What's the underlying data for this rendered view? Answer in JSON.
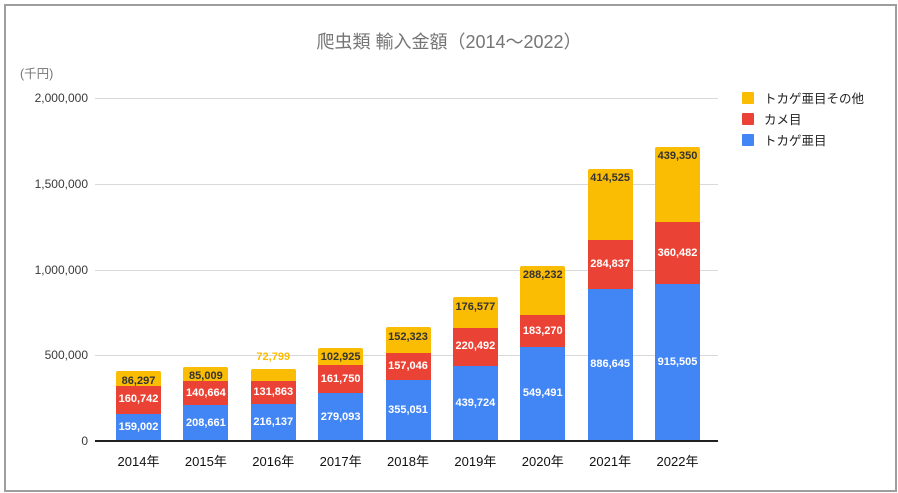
{
  "chart": {
    "title": "爬虫類 輸入金額（2014～2022）",
    "unit_label": "(千円)"
  },
  "chart_data": {
    "type": "bar",
    "stacked": true,
    "title": "爬虫類 輸入金額（2014～2022）",
    "xlabel": "",
    "ylabel": "(千円)",
    "ylim": [
      0,
      2000000
    ],
    "y_ticks": [
      0,
      500000,
      1000000,
      1500000,
      2000000
    ],
    "y_tick_labels": [
      "0",
      "500,000",
      "1,000,000",
      "1,500,000",
      "2,000,000"
    ],
    "grid": true,
    "legend_position": "right",
    "categories": [
      "2014年",
      "2015年",
      "2016年",
      "2017年",
      "2018年",
      "2019年",
      "2020年",
      "2021年",
      "2022年"
    ],
    "series": [
      {
        "name": "トカゲ亜目",
        "color": "#4285F4",
        "label_color": "#ffffff",
        "values": [
          159002,
          208661,
          216137,
          279093,
          355051,
          439724,
          549491,
          886645,
          915505
        ]
      },
      {
        "name": "カメ目",
        "color": "#EA4335",
        "label_color": "#ffffff",
        "values": [
          160742,
          140664,
          131863,
          161750,
          157046,
          220492,
          183270,
          284837,
          360482
        ]
      },
      {
        "name": "トカゲ亜目その他",
        "color": "#FBBC04",
        "label_color": "#333333",
        "values": [
          86297,
          85009,
          72799,
          102925,
          152323,
          176577,
          288232,
          414525,
          439350
        ]
      }
    ]
  }
}
